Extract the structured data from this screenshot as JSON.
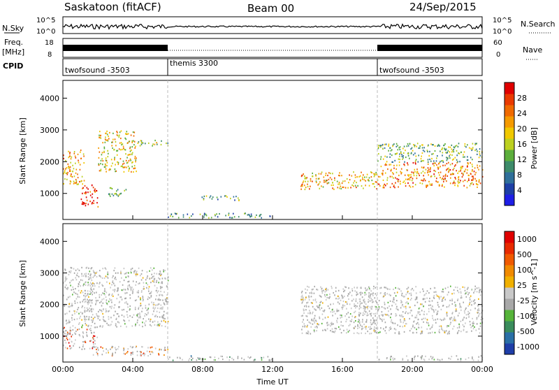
{
  "header": {
    "station": "Saskatoon (fitACF)",
    "beam": "Beam 00",
    "date": "24/Sep/2015"
  },
  "top_panels": {
    "nsky_label": "N.Sky",
    "nsky_ticks": [
      "10^5",
      "10^0"
    ],
    "nsearch_label": "N.Search",
    "nsearch_ticks": [
      "10^5",
      "10^0"
    ],
    "freq_label_1": "Freq.",
    "freq_label_2": "[MHz]",
    "freq_ticks": [
      "18",
      "8"
    ],
    "nave_label": "Nave",
    "nave_ticks": [
      "60",
      "0"
    ],
    "cpid_label": "CPID",
    "cpid_segments": [
      {
        "name": "twofsound -3503",
        "start": 0,
        "end": 6
      },
      {
        "name": "themis 3300",
        "start": 6,
        "end": 18
      },
      {
        "name": "twofsound -3503",
        "start": 18,
        "end": 24
      }
    ]
  },
  "chart_data": [
    {
      "type": "heatmap",
      "quantity": "Power",
      "ylabel": "Slant Range [km]",
      "xlabel": "Time UT",
      "ylim": [
        180,
        4560
      ],
      "xlim": [
        0,
        24
      ],
      "y_ticks": [
        1000,
        2000,
        3000,
        4000
      ],
      "x_ticks": [
        "00:00",
        "04:00",
        "08:00",
        "12:00",
        "16:00",
        "20:00",
        "00:00"
      ],
      "colorbar_label": "Power [dB]",
      "colorbar_ticks": [
        "4",
        "8",
        "12",
        "16",
        "20",
        "24",
        "28"
      ],
      "colorbar_colors": [
        "#1e1ee6",
        "#1d3fa6",
        "#2f6f9a",
        "#3d8b6a",
        "#5cae3c",
        "#bcd020",
        "#f0c800",
        "#f59a00",
        "#f06a00",
        "#ea3a00",
        "#e00000"
      ],
      "scatter_bands": [
        {
          "t0": 0,
          "t1": 1.2,
          "r0": 1300,
          "r1": 2400,
          "level": 0.7
        },
        {
          "t0": 1.0,
          "t1": 2.0,
          "r0": 600,
          "r1": 1300,
          "level": 0.95
        },
        {
          "t0": 2.0,
          "t1": 4.2,
          "r0": 1700,
          "r1": 3000,
          "level": 0.6
        },
        {
          "t0": 2.5,
          "t1": 3.6,
          "r0": 900,
          "r1": 1200,
          "level": 0.4
        },
        {
          "t0": 4.2,
          "t1": 6.0,
          "r0": 2500,
          "r1": 2700,
          "level": 0.45
        },
        {
          "t0": 6.0,
          "t1": 12.0,
          "r0": 250,
          "r1": 400,
          "level": 0.3
        },
        {
          "t0": 7.8,
          "t1": 10.2,
          "r0": 800,
          "r1": 950,
          "level": 0.35
        },
        {
          "t0": 13.6,
          "t1": 18.0,
          "r0": 1150,
          "r1": 1700,
          "level": 0.65
        },
        {
          "t0": 18.0,
          "t1": 24.0,
          "r0": 1200,
          "r1": 2000,
          "level": 0.75
        },
        {
          "t0": 18.0,
          "t1": 24.0,
          "r0": 2000,
          "r1": 2600,
          "level": 0.4
        }
      ]
    },
    {
      "type": "heatmap",
      "quantity": "Velocity",
      "ylabel": "Slant Range [km]",
      "xlabel": "Time UT",
      "ylim": [
        180,
        4560
      ],
      "xlim": [
        0,
        24
      ],
      "y_ticks": [
        1000,
        2000,
        3000,
        4000
      ],
      "x_ticks": [
        "00:00",
        "04:00",
        "08:00",
        "12:00",
        "16:00",
        "20:00",
        "00:00"
      ],
      "colorbar_label": "Velocity [m s^-1]",
      "colorbar_ticks": [
        "1000",
        "500",
        "100",
        "25",
        "-25",
        "-100",
        "-500",
        "-1000"
      ],
      "colorbar_colors": [
        "#1e3ea8",
        "#2a6fa6",
        "#3a8c5c",
        "#56b43a",
        "#a8a8a8",
        "#c8c8c8",
        "#f0b000",
        "#f08a00",
        "#f05a00",
        "#e82a00",
        "#e00000"
      ],
      "scatter_bands": [
        {
          "t0": 0,
          "t1": 2.0,
          "r0": 600,
          "r1": 1300,
          "level": 0.9
        },
        {
          "t0": 0,
          "t1": 6.0,
          "r0": 1300,
          "r1": 3200,
          "level": 0.45
        },
        {
          "t0": 1.5,
          "t1": 6.0,
          "r0": 400,
          "r1": 700,
          "level": 0.75
        },
        {
          "t0": 6.0,
          "t1": 12.0,
          "r0": 250,
          "r1": 400,
          "level": 0.25
        },
        {
          "t0": 13.6,
          "t1": 24.0,
          "r0": 1100,
          "r1": 2600,
          "level": 0.45
        },
        {
          "t0": 18.0,
          "t1": 24.0,
          "r0": 250,
          "r1": 400,
          "level": 0.3
        }
      ]
    }
  ]
}
